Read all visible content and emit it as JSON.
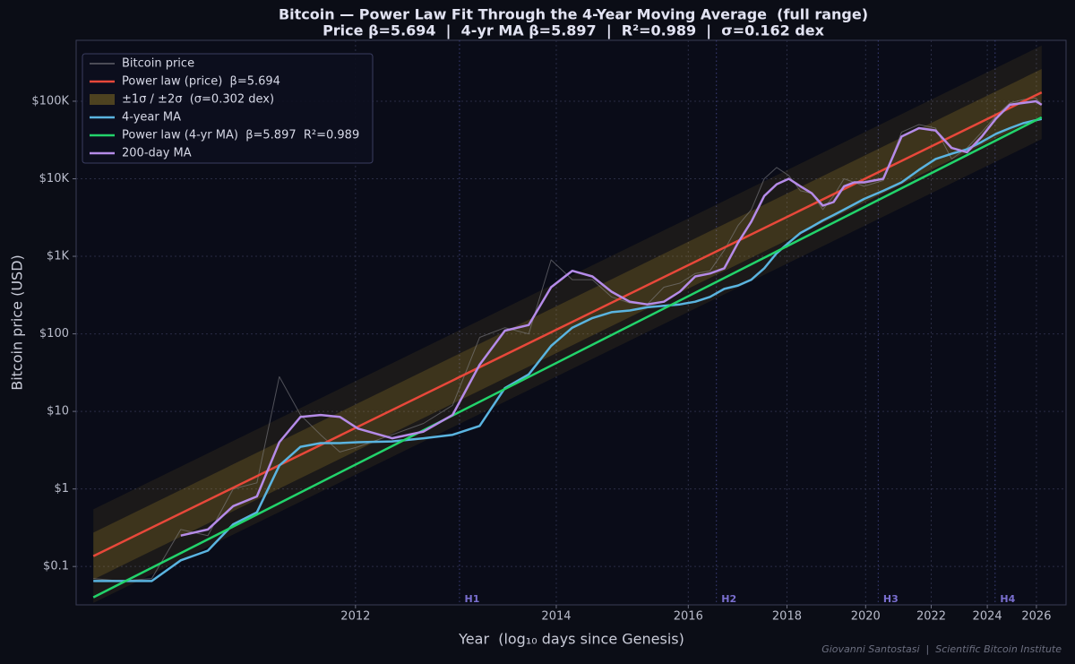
{
  "chart_data": {
    "type": "line",
    "title": "Bitcoin — Power Law Fit Through the 4-Year Moving Average  (full range)",
    "subtitle": "Price β=5.694  |  4-yr MA β=5.897  |  R²=0.989  |  σ=0.162 dex",
    "x_label": "Year  (log₁₀ days since Genesis)",
    "y_label": "Bitcoin price (USD)",
    "credit": "Giovanni Santostasi  |  Scientific Bitcoin Institute",
    "x_log": true,
    "y_log": true,
    "grid": true,
    "legend": "upper left",
    "xlim": [
      536,
      6694
    ],
    "ylim": [
      0.032,
      610000
    ],
    "xticks": [
      {
        "value": 1093,
        "label": "2012"
      },
      {
        "value": 1824,
        "label": "2014"
      },
      {
        "value": 2554,
        "label": "2016"
      },
      {
        "value": 3285,
        "label": "2018"
      },
      {
        "value": 4015,
        "label": "2020"
      },
      {
        "value": 4746,
        "label": "2022"
      },
      {
        "value": 5476,
        "label": "2024"
      },
      {
        "value": 6207,
        "label": "2026"
      }
    ],
    "yticks": [
      {
        "value": 0.1,
        "label": "$0.1"
      },
      {
        "value": 1,
        "label": "$1"
      },
      {
        "value": 10,
        "label": "$10"
      },
      {
        "value": 100,
        "label": "$100"
      },
      {
        "value": 1000,
        "label": "$1K"
      },
      {
        "value": 10000,
        "label": "$10K"
      },
      {
        "value": 100000,
        "label": "$100K"
      }
    ],
    "halvings": [
      {
        "label": "H1",
        "x": 1425
      },
      {
        "label": "H2",
        "x": 2744
      },
      {
        "label": "H3",
        "x": 4146
      },
      {
        "label": "H4",
        "x": 5586
      }
    ],
    "x": [
      560,
      600,
      650,
      700,
      750,
      800,
      850,
      900,
      950,
      1000,
      1050,
      1100,
      1200,
      1300,
      1400,
      1500,
      1600,
      1700,
      1800,
      1900,
      2000,
      2100,
      2200,
      2300,
      2400,
      2500,
      2600,
      2700,
      2800,
      2900,
      3000,
      3100,
      3200,
      3300,
      3400,
      3500,
      3600,
      3700,
      3800,
      3900,
      4000,
      4200,
      4400,
      4600,
      4800,
      5000,
      5200,
      5400,
      5600,
      5800,
      6000,
      6200,
      6290
    ],
    "series": [
      {
        "name": "Bitcoin price",
        "color": "#8a8a90",
        "linewidth": 1,
        "values": [
          0.07,
          0.065,
          0.07,
          0.3,
          0.25,
          1.0,
          1.2,
          28,
          9,
          5,
          3,
          3.5,
          5,
          7,
          12,
          90,
          120,
          100,
          900,
          500,
          500,
          300,
          250,
          240,
          400,
          450,
          600,
          650,
          1200,
          2500,
          4000,
          10000,
          14000,
          11000,
          7000,
          6500,
          4000,
          6000,
          10000,
          9000,
          8000,
          9500,
          40000,
          50000,
          45000,
          18000,
          25000,
          40000,
          65000,
          95000,
          105000,
          110000,
          90000
        ]
      },
      {
        "name": "Power law (price)  β=5.694",
        "color": "#e8483a",
        "linewidth": 2.5,
        "x": [
          560,
          6290
        ],
        "values": [
          0.136,
          130000
        ]
      },
      {
        "name": "±1σ / ±2σ  (σ=0.302 dex)",
        "color": "#c9a227",
        "x": [
          560,
          6290
        ],
        "upper2": [
          0.546,
          522000
        ],
        "upper1": [
          0.273,
          260500
        ],
        "lower1": [
          0.0679,
          64900
        ],
        "lower2": [
          0.0338,
          32400
        ]
      },
      {
        "name": "4-year MA",
        "color": "#5ab4e0",
        "linewidth": 2.5,
        "values": [
          0.065,
          0.065,
          0.065,
          0.12,
          0.16,
          0.35,
          0.5,
          2,
          3.5,
          3.9,
          3.9,
          4,
          4.1,
          4.5,
          5,
          6.5,
          20,
          30,
          70,
          120,
          160,
          190,
          200,
          220,
          230,
          240,
          260,
          300,
          380,
          420,
          500,
          700,
          1100,
          1500,
          2000,
          2400,
          2900,
          3400,
          4000,
          4700,
          5500,
          7000,
          9000,
          13000,
          18000,
          21000,
          24000,
          30000,
          38000,
          45000,
          52000,
          57000,
          59000
        ]
      },
      {
        "name": "Power law (4-yr MA)  β=5.897  R²=0.989",
        "color": "#22d36b",
        "linewidth": 2.5,
        "x": [
          560,
          6290
        ],
        "values": [
          0.04,
          62000
        ]
      },
      {
        "name": "200-day MA",
        "color": "#b58be8",
        "linewidth": 2.5,
        "values": [
          null,
          null,
          null,
          0.25,
          0.3,
          0.6,
          0.8,
          4,
          8.5,
          9,
          8.5,
          6,
          4.5,
          5.5,
          9,
          40,
          110,
          130,
          400,
          650,
          550,
          350,
          260,
          240,
          260,
          350,
          550,
          600,
          700,
          1500,
          2800,
          6000,
          8500,
          10000,
          8000,
          6500,
          4500,
          5000,
          8000,
          9000,
          9000,
          10000,
          35000,
          45000,
          42000,
          25000,
          22000,
          35000,
          60000,
          90000,
          95000,
          100000,
          90000
        ]
      }
    ]
  }
}
